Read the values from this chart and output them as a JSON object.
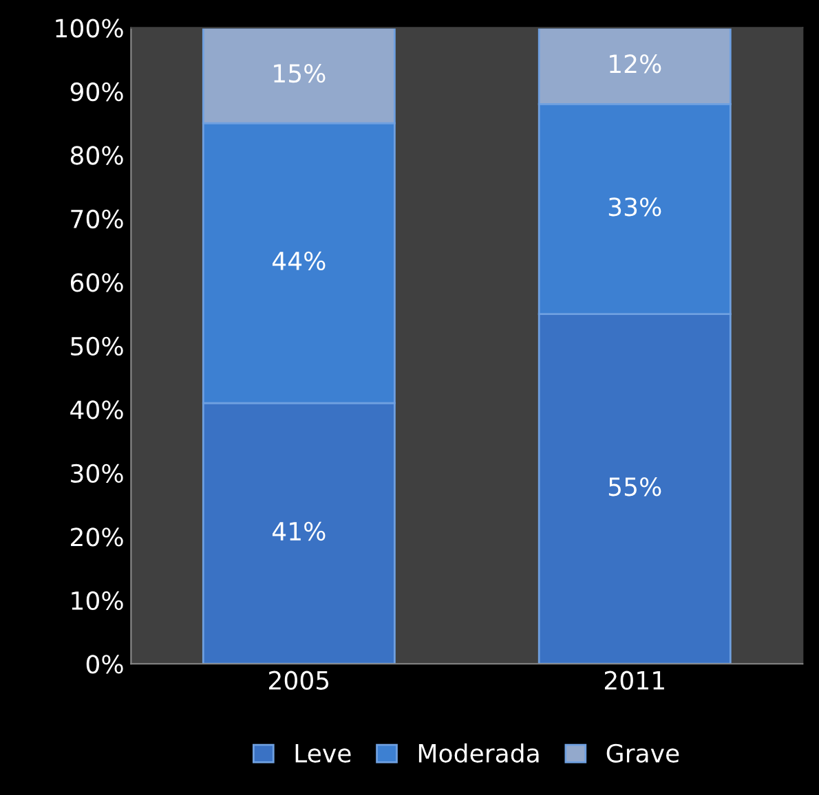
{
  "chart_data": {
    "type": "bar",
    "stacked": true,
    "categories": [
      "2005",
      "2011"
    ],
    "series": [
      {
        "name": "Leve",
        "color": "#3a72c4",
        "values": [
          41,
          55
        ],
        "value_labels": [
          "41%",
          "55%"
        ]
      },
      {
        "name": "Moderada",
        "color": "#3d80d2",
        "values": [
          44,
          33
        ],
        "value_labels": [
          "44%",
          "33%"
        ]
      },
      {
        "name": "Grave",
        "color": "#93a9cc",
        "values": [
          15,
          12
        ],
        "value_labels": [
          "15%",
          "12%"
        ]
      }
    ],
    "ylim": [
      0,
      100
    ],
    "yticks": [
      {
        "value": 0,
        "label": "0%"
      },
      {
        "value": 10,
        "label": "10%"
      },
      {
        "value": 20,
        "label": "20%"
      },
      {
        "value": 30,
        "label": "30%"
      },
      {
        "value": 40,
        "label": "40%"
      },
      {
        "value": 50,
        "label": "50%"
      },
      {
        "value": 60,
        "label": "60%"
      },
      {
        "value": 70,
        "label": "70%"
      },
      {
        "value": 80,
        "label": "80%"
      },
      {
        "value": 90,
        "label": "90%"
      },
      {
        "value": 100,
        "label": "100%"
      }
    ],
    "grid": false,
    "legend": "bottom"
  }
}
